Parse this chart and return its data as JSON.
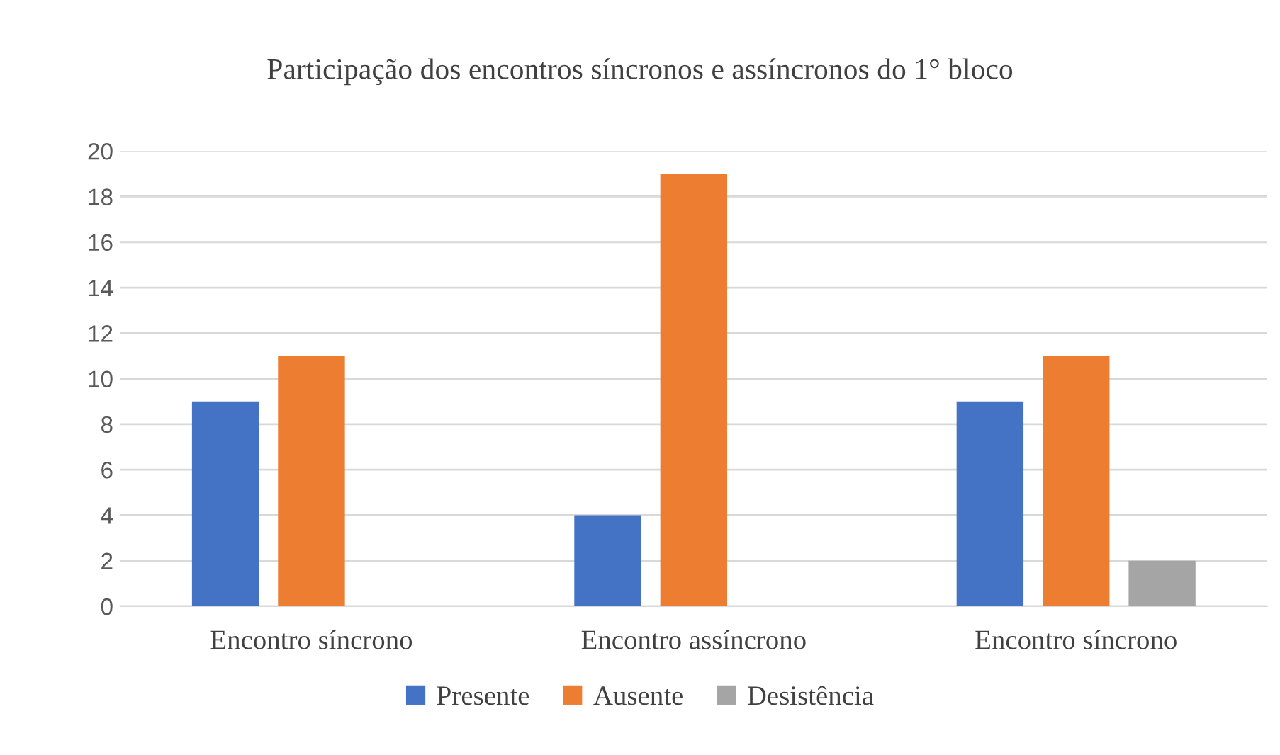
{
  "chart_data": {
    "type": "bar",
    "title": "Participação dos encontros síncronos e assíncronos do 1° bloco",
    "categories": [
      "Encontro síncrono",
      "Encontro assíncrono",
      "Encontro síncrono"
    ],
    "series": [
      {
        "name": "Presente",
        "color": "#4472c4",
        "values": [
          9,
          4,
          9
        ]
      },
      {
        "name": "Ausente",
        "color": "#ed7d31",
        "values": [
          11,
          19,
          11
        ]
      },
      {
        "name": "Desistência",
        "color": "#a5a5a5",
        "values": [
          0,
          0,
          2
        ]
      }
    ],
    "ylim": [
      0,
      20
    ],
    "yticks": [
      0,
      2,
      4,
      6,
      8,
      10,
      12,
      14,
      16,
      18,
      20
    ],
    "grid": "y",
    "legend": "bottom"
  }
}
